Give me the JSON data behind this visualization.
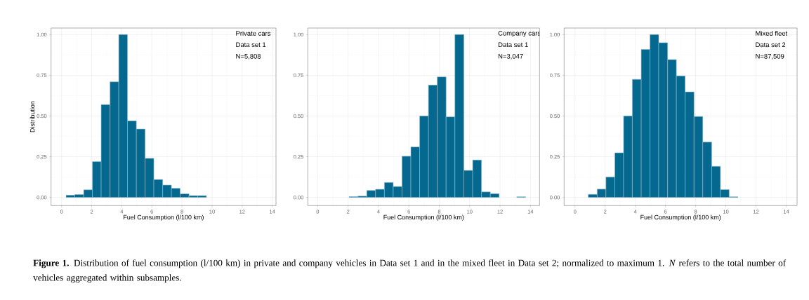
{
  "chart_data": [
    {
      "type": "histogram",
      "xlabel": "Fuel Consumption (l/100 km)",
      "ylabel": "Distribution",
      "color": "#05698f",
      "bins": [
        0.3,
        0.88,
        1.47,
        2.05,
        2.63,
        3.22,
        3.8,
        4.38,
        4.97,
        5.55,
        6.13,
        6.72,
        7.3,
        7.88,
        8.47,
        9.05,
        9.63
      ],
      "values": [
        0.014,
        0.018,
        0.047,
        0.22,
        0.57,
        0.71,
        1.0,
        0.47,
        0.42,
        0.24,
        0.11,
        0.076,
        0.056,
        0.022,
        0.011,
        0.011
      ],
      "xlim": [
        -0.7,
        14.25
      ],
      "ylim": [
        -0.05,
        1.04
      ],
      "xticks": [
        0,
        2,
        4,
        6,
        8,
        10,
        12,
        14
      ],
      "yticks": [
        {
          "value": 0,
          "label": "0.00"
        },
        {
          "value": 0.25,
          "label": "0.25"
        },
        {
          "value": 0.5,
          "label": "0.50"
        },
        {
          "value": 0.75,
          "label": "0.75"
        },
        {
          "value": 1,
          "label": "1.00"
        }
      ],
      "grid": true,
      "annotations": [
        "Private cars",
        "Data set 1",
        "N=5,808"
      ]
    },
    {
      "type": "histogram",
      "xlabel": "Fuel Consumption (l/100 km)",
      "color": "#05698f",
      "bins": [
        2.07,
        2.65,
        3.23,
        3.81,
        4.39,
        4.97,
        5.55,
        6.13,
        6.71,
        7.29,
        7.87,
        8.45,
        9.03,
        9.62,
        10.2,
        10.78,
        11.36,
        11.94,
        12.52,
        13.1,
        13.68
      ],
      "values": [
        0.005,
        0.008,
        0.043,
        0.05,
        0.092,
        0.067,
        0.253,
        0.31,
        0.5,
        0.69,
        0.74,
        0.495,
        1.0,
        0.166,
        0.23,
        0.034,
        0.023,
        0,
        0,
        0.004
      ],
      "xlim": [
        -0.65,
        14.6
      ],
      "ylim": [
        -0.05,
        1.04
      ],
      "xticks": [
        0,
        2,
        4,
        6,
        8,
        10,
        12,
        14
      ],
      "yticks": [
        {
          "value": 0,
          "label": "0.00"
        },
        {
          "value": 0.25,
          "label": "0.25"
        },
        {
          "value": 0.5,
          "label": "0.50"
        },
        {
          "value": 0.75,
          "label": "0.75"
        },
        {
          "value": 1,
          "label": "1.00"
        }
      ],
      "grid": true,
      "annotations": [
        "Company cars",
        "Data set 1",
        "N=3,047"
      ]
    },
    {
      "type": "histogram",
      "xlabel": "Fuel Consumption (l/100 km)",
      "color": "#05698f",
      "bins": [
        0.88,
        1.47,
        2.05,
        2.64,
        3.22,
        3.8,
        4.39,
        4.97,
        5.55,
        6.14,
        6.72,
        7.3,
        7.89,
        8.47,
        9.06,
        9.64,
        10.22,
        10.8
      ],
      "values": [
        0.019,
        0.051,
        0.125,
        0.274,
        0.5,
        0.725,
        0.909,
        1.0,
        0.95,
        0.846,
        0.746,
        0.648,
        0.497,
        0.34,
        0.191,
        0.048,
        0.004
      ],
      "xlim": [
        -0.72,
        14.72
      ],
      "ylim": [
        -0.05,
        1.04
      ],
      "xticks": [
        0,
        2,
        4,
        6,
        8,
        10,
        12,
        14
      ],
      "yticks": [
        {
          "value": 0,
          "label": "0.00"
        },
        {
          "value": 0.25,
          "label": "0.25"
        },
        {
          "value": 0.5,
          "label": "0.50"
        },
        {
          "value": 0.75,
          "label": "0.75"
        },
        {
          "value": 1,
          "label": "1.00"
        }
      ],
      "grid": true,
      "annotations": [
        "Mixed fleet",
        "Data set 2",
        "N=87,509",
        "**Figure 1.** Distribution of fuel consumption (l/100 km) in private and company vehicles in Data set 1 and in the mixed fleet in Data set 2; normalized to maximum 1. *N* refers to the total number of vehicles aggregated within subsamples."
      ]
    }
  ]
}
